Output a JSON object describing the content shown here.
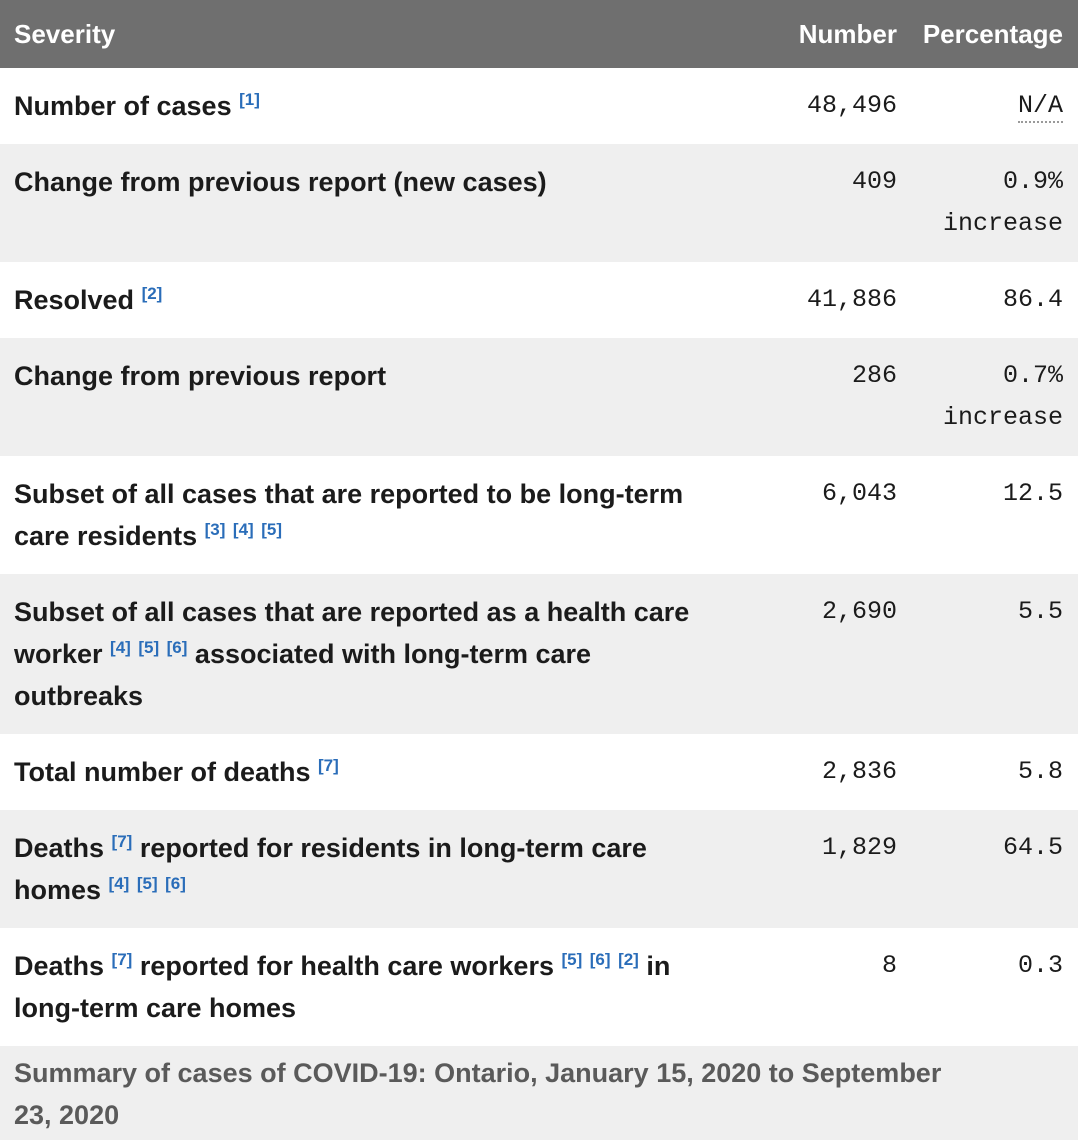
{
  "header": {
    "columns": [
      "Severity",
      "Number",
      "Percentage"
    ]
  },
  "rows": [
    {
      "severity": "Number of cases [1]",
      "number": "48,496",
      "percentage": "N/A",
      "na_dotted": true
    },
    {
      "severity": "Change from previous report (new cases)",
      "number": "409",
      "percentage": "0.9% increase",
      "na_dotted": false
    },
    {
      "severity": "Resolved [2]",
      "number": "41,886",
      "percentage": "86.4",
      "na_dotted": false
    },
    {
      "severity": "Change from previous report",
      "number": "286",
      "percentage": "0.7% increase",
      "na_dotted": false
    },
    {
      "severity": "Subset of all cases that are reported to be long-term care residents [3] [4] [5]",
      "number": "6,043",
      "percentage": "12.5",
      "na_dotted": false
    },
    {
      "severity": "Subset of all cases that are reported as a health care worker [4] [5] [6] associated with long-term care outbreaks",
      "number": "2,690",
      "percentage": "5.5",
      "na_dotted": false
    },
    {
      "severity": "Total number of deaths [7]",
      "number": "2,836",
      "percentage": "5.8",
      "na_dotted": false
    },
    {
      "severity": "Deaths [7] reported for residents in long-term care homes [4] [5] [6]",
      "number": "1,829",
      "percentage": "64.5",
      "na_dotted": false
    },
    {
      "severity": "Deaths [7] reported for health care workers [5] [6] [2] in long-term care homes",
      "number": "8",
      "percentage": "0.3",
      "na_dotted": false
    }
  ],
  "caption": "Summary of cases of COVID-19: Ontario, January 15, 2020 to September 23, 2020",
  "colors": {
    "header_bg": "#6f6f6f",
    "header_text": "#ffffff",
    "alt_row_bg": "#efefef",
    "label_text": "#1b1b1b",
    "footnote_link": "#2a6db9",
    "caption_text": "#5a5a5a",
    "na_dotted_underline": "#9a9a9a"
  },
  "chart_data": {
    "type": "table",
    "title": "Summary of cases of COVID-19: Ontario, January 15, 2020 to September 23, 2020",
    "columns": [
      "Severity",
      "Number",
      "Percentage"
    ],
    "rows": [
      [
        "Number of cases [1]",
        "48,496",
        "N/A"
      ],
      [
        "Change from previous report (new cases)",
        "409",
        "0.9% increase"
      ],
      [
        "Resolved [2]",
        "41,886",
        "86.4"
      ],
      [
        "Change from previous report",
        "286",
        "0.7% increase"
      ],
      [
        "Subset of all cases that are reported to be long-term care residents [3] [4] [5]",
        "6,043",
        "12.5"
      ],
      [
        "Subset of all cases that are reported as a health care worker [4] [5] [6] associated with long-term care outbreaks",
        "2,690",
        "5.5"
      ],
      [
        "Total number of deaths [7]",
        "2,836",
        "5.8"
      ],
      [
        "Deaths [7] reported for residents in long-term care homes [4] [5] [6]",
        "1,829",
        "64.5"
      ],
      [
        "Deaths [7] reported for health care workers [5] [6] [2] in long-term care homes",
        "8",
        "0.3"
      ]
    ]
  }
}
